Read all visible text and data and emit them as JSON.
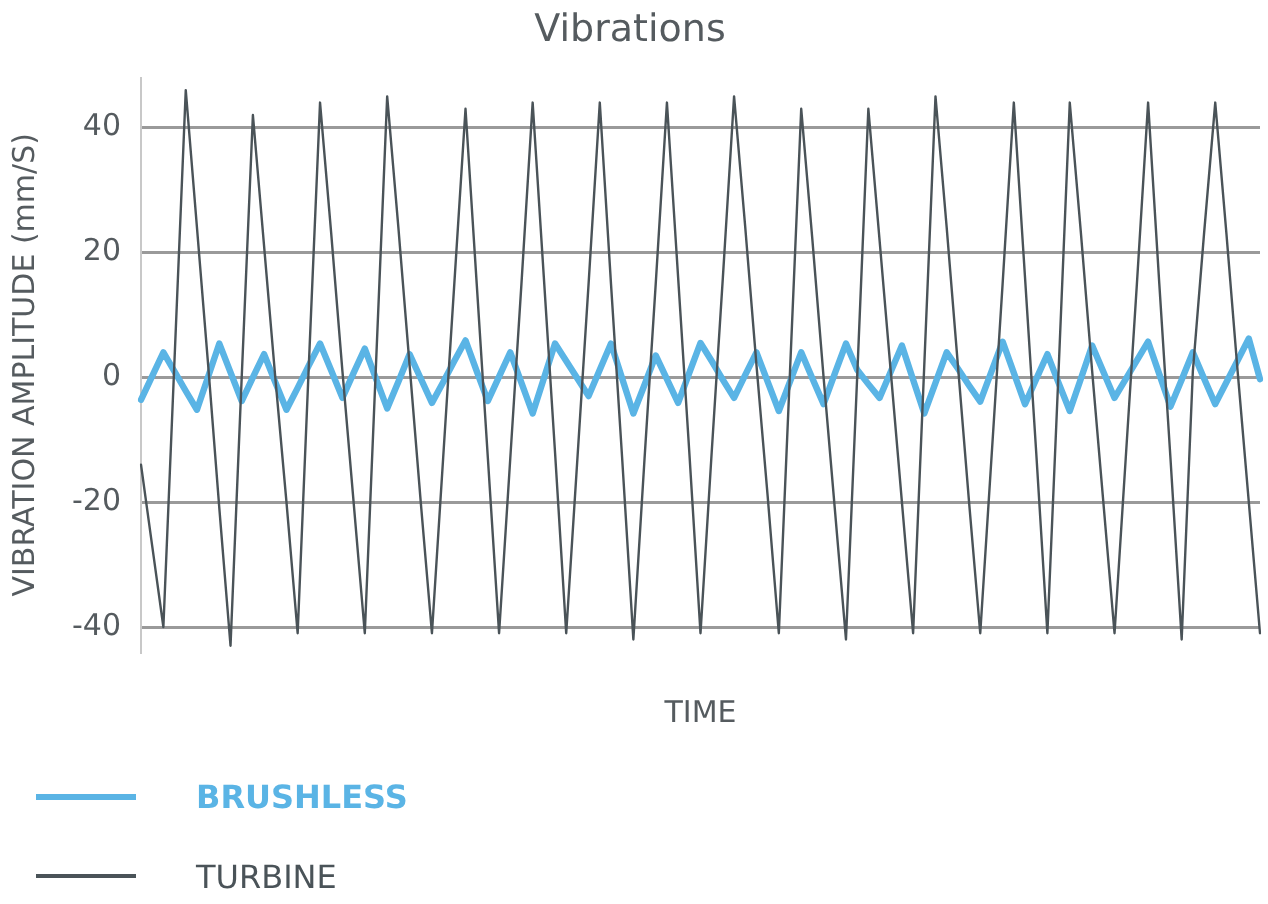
{
  "chart_data": {
    "type": "line",
    "title": "Vibrations",
    "xlabel": "TIME",
    "ylabel": "VIBRATION AMPLITUDE (mm/S)",
    "ylim": [
      -44,
      48
    ],
    "yticks": [
      -40,
      -20,
      0,
      20,
      40
    ],
    "tick_labels": "y",
    "grid": "y",
    "legend": "bottom left",
    "marker": "none",
    "line_style": "solid",
    "categories": [
      null,
      null,
      null,
      null,
      null,
      null,
      null,
      null,
      null,
      null,
      null,
      null,
      null,
      null,
      null,
      null,
      null,
      null,
      null,
      null,
      null,
      null,
      null,
      null,
      null,
      null,
      null,
      null,
      null,
      null,
      null,
      null,
      null,
      null,
      null,
      null,
      null,
      null,
      null,
      null,
      null,
      null,
      null,
      null,
      null,
      null,
      null,
      null,
      null,
      null,
      null,
      null,
      null,
      null,
      null,
      null,
      null,
      null,
      null,
      null,
      null,
      null,
      null,
      null,
      null,
      null,
      null,
      null,
      null,
      null,
      null,
      null,
      null,
      null,
      null,
      null,
      null,
      null,
      null,
      null,
      null,
      null,
      null,
      null,
      null,
      null,
      null,
      null,
      null,
      null,
      null,
      null,
      null,
      null,
      null,
      null,
      null,
      null,
      null,
      null,
      null
    ],
    "series": [
      {
        "name": "BRUSHLESS",
        "color": "#5ab4e5",
        "values": [
          -3.6,
          0.2,
          4,
          0.9,
          -2.2,
          -5.2,
          0.1,
          5.4,
          0.8,
          -3.8,
          0,
          3.7,
          -0.8,
          -5.2,
          -1.7,
          1.9,
          5.4,
          1.1,
          -3.3,
          0.7,
          4.6,
          -0.2,
          -5,
          -0.7,
          3.7,
          -0.2,
          -4.1,
          -0.8,
          2.6,
          5.9,
          1,
          -3.8,
          0.1,
          4,
          -0.9,
          -5.8,
          -0.2,
          5.4,
          2.6,
          -0.2,
          -3,
          1.2,
          5.4,
          -0.2,
          -5.8,
          -1.2,
          3.5,
          -0.3,
          -4.1,
          0.7,
          5.5,
          2.6,
          -0.4,
          -3.3,
          0.4,
          4,
          -0.7,
          -5.4,
          -0.7,
          4,
          -0.2,
          -4.3,
          0.6,
          5.4,
          1.2,
          -1.1,
          -3.3,
          0.9,
          5.1,
          -0.4,
          -5.8,
          -0.9,
          4,
          1.4,
          -1.3,
          -3.9,
          0.9,
          5.7,
          0.7,
          -4.3,
          -0.3,
          3.7,
          -0.9,
          -5.4,
          -0.2,
          5.1,
          0.9,
          -3.3,
          -0.3,
          2.7,
          5.7,
          0.5,
          -4.7,
          -0.4,
          4,
          -0.2,
          -4.3,
          -0.8,
          2.7,
          6.2,
          -0.3
        ]
      },
      {
        "name": "TURBINE",
        "color": "#4a5358",
        "values": [
          -14,
          -27,
          -40,
          3,
          46,
          24,
          2,
          -21,
          -43,
          0,
          42,
          21,
          0,
          -20,
          -41,
          2,
          44,
          23,
          1,
          -20,
          -41,
          2,
          45,
          24,
          2,
          -20,
          -41,
          -13,
          15,
          43,
          15,
          -13,
          -41,
          -13,
          15,
          44,
          16,
          -12,
          -41,
          -13,
          15,
          44,
          15,
          -13,
          -42,
          -13,
          15,
          44,
          16,
          -12,
          -41,
          -12,
          16,
          45,
          24,
          2,
          -19,
          -41,
          1,
          43,
          22,
          0,
          -21,
          -42,
          0,
          43,
          22,
          1,
          -20,
          -41,
          2,
          45,
          24,
          2,
          -20,
          -41,
          -13,
          15,
          44,
          16,
          -12,
          -41,
          1,
          44,
          23,
          1,
          -20,
          -41,
          -13,
          15,
          44,
          15,
          -13,
          -42,
          1,
          23,
          44,
          23,
          1,
          -20,
          -41
        ]
      }
    ]
  }
}
